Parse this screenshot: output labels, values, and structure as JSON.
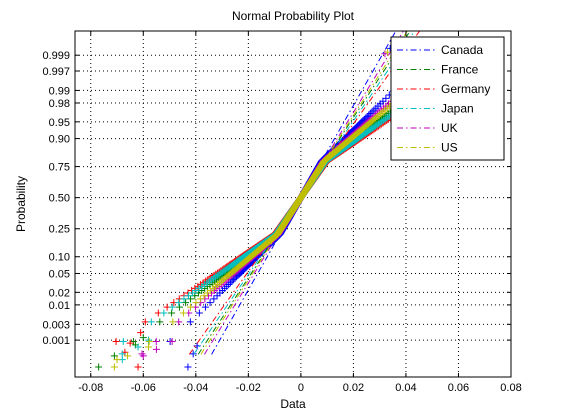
{
  "chart_data": {
    "type": "scatter",
    "title": "Normal Probability Plot",
    "xlabel": "Data",
    "ylabel": "Probability",
    "xlim": [
      -0.086,
      0.08
    ],
    "x_ticks": [
      -0.08,
      -0.06,
      -0.04,
      -0.02,
      0,
      0.02,
      0.04,
      0.06,
      0.08
    ],
    "x_tick_labels": [
      "-0.08",
      "-0.06",
      "-0.04",
      "-0.02",
      "0",
      "0.02",
      "0.04",
      "0.06",
      "0.08"
    ],
    "y_scale": "normal-probability",
    "ylim": [
      5e-05,
      0.99985
    ],
    "y_ticks": [
      0.001,
      0.003,
      0.01,
      0.02,
      0.05,
      0.1,
      0.25,
      0.5,
      0.75,
      0.9,
      0.95,
      0.98,
      0.99,
      0.997,
      0.999
    ],
    "y_tick_labels": [
      "0.001",
      "0.003",
      "0.01",
      "0.02",
      "0.05",
      "0.10",
      "0.25",
      "0.50",
      "0.75",
      "0.90",
      "0.95",
      "0.98",
      "0.99",
      "0.997",
      "0.999"
    ],
    "grid": true,
    "legend_position": "top-right",
    "series": [
      {
        "name": "Canada",
        "color": "#0000ff",
        "scale": 0.01,
        "tail_scale": 0.018,
        "tail_points": [
          {
            "x": -0.0395,
            "p": 0.00065
          },
          {
            "x": -0.041,
            "p": 0.00035
          },
          {
            "x": -0.043,
            "p": 0.00012
          },
          {
            "x": 0.034,
            "p": 0.9994
          }
        ]
      },
      {
        "name": "France",
        "color": "#008000",
        "scale": 0.0115,
        "tail_scale": 0.0235,
        "tail_points": [
          {
            "x": -0.06,
            "p": 0.0012
          },
          {
            "x": -0.063,
            "p": 0.0007
          },
          {
            "x": -0.071,
            "p": 0.0003
          },
          {
            "x": -0.077,
            "p": 0.00012
          },
          {
            "x": 0.036,
            "p": 0.9993
          }
        ]
      },
      {
        "name": "Germany",
        "color": "#ff0000",
        "scale": 0.0125,
        "tail_scale": 0.026,
        "tail_points": [
          {
            "x": -0.061,
            "p": 0.0017
          },
          {
            "x": -0.065,
            "p": 0.0008
          },
          {
            "x": -0.067,
            "p": 0.0004
          },
          {
            "x": -0.062,
            "p": 0.00012
          },
          {
            "x": 0.036,
            "p": 0.999
          }
        ]
      },
      {
        "name": "Japan",
        "color": "#00bfbf",
        "scale": 0.012,
        "tail_scale": 0.025,
        "tail_points": [
          {
            "x": -0.058,
            "p": 0.001
          },
          {
            "x": -0.062,
            "p": 0.0006
          },
          {
            "x": -0.068,
            "p": 0.00035
          },
          {
            "x": -0.068,
            "p": 0.00022
          },
          {
            "x": 0.035,
            "p": 0.9992
          }
        ]
      },
      {
        "name": "UK",
        "color": "#bf00bf",
        "scale": 0.0108,
        "tail_scale": 0.02,
        "tail_points": [
          {
            "x": -0.049,
            "p": 0.0009
          },
          {
            "x": -0.055,
            "p": 0.0005
          },
          {
            "x": -0.06,
            "p": 0.0003
          },
          {
            "x": -0.0605,
            "p": 0.00035
          },
          {
            "x": 0.032,
            "p": 0.9991
          }
        ]
      },
      {
        "name": "US",
        "color": "#bfbf00",
        "scale": 0.0112,
        "tail_scale": 0.021,
        "tail_points": [
          {
            "x": -0.058,
            "p": 0.0006
          },
          {
            "x": -0.066,
            "p": 0.0003
          },
          {
            "x": -0.07,
            "p": 0.00022
          },
          {
            "x": -0.071,
            "p": 0.00012
          },
          {
            "x": 0.033,
            "p": 0.9992
          }
        ]
      }
    ]
  }
}
